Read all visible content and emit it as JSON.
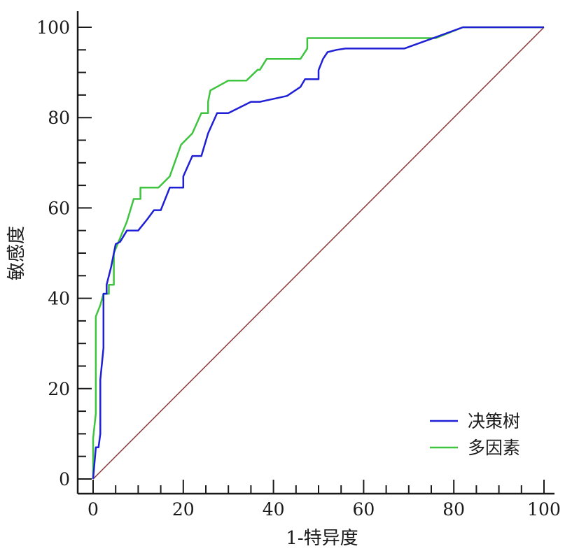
{
  "chart_data": {
    "type": "line",
    "xlabel": "1-特异度",
    "ylabel": "敏感度",
    "xlim": [
      0,
      100
    ],
    "ylim": [
      0,
      100
    ],
    "x_ticks": [
      0,
      20,
      40,
      60,
      80,
      100
    ],
    "y_ticks": [
      0,
      20,
      40,
      60,
      80,
      100
    ],
    "grid": false,
    "legend_position": "bottom-right",
    "reference_line": {
      "x": [
        0,
        100
      ],
      "y": [
        0,
        100
      ],
      "color": "#8b3a3a"
    },
    "series": [
      {
        "name": "决策树",
        "color": "#1f1fd6",
        "points": [
          [
            0,
            0
          ],
          [
            0.6,
            7
          ],
          [
            1.2,
            7
          ],
          [
            1.6,
            10
          ],
          [
            1.6,
            22
          ],
          [
            2.3,
            29
          ],
          [
            2.3,
            41
          ],
          [
            3,
            41
          ],
          [
            3,
            43
          ],
          [
            4,
            47
          ],
          [
            5,
            52
          ],
          [
            6,
            52.5
          ],
          [
            7.5,
            55
          ],
          [
            10,
            55
          ],
          [
            12,
            57.5
          ],
          [
            13.5,
            59.5
          ],
          [
            15,
            59.5
          ],
          [
            17,
            64.5
          ],
          [
            20,
            64.5
          ],
          [
            20,
            67
          ],
          [
            22,
            71.5
          ],
          [
            24,
            71.5
          ],
          [
            25.5,
            76.5
          ],
          [
            27.5,
            81
          ],
          [
            30,
            81
          ],
          [
            35,
            83.5
          ],
          [
            37,
            83.5
          ],
          [
            43,
            84.8
          ],
          [
            46,
            86.8
          ],
          [
            47,
            88.5
          ],
          [
            50,
            88.5
          ],
          [
            50,
            90.5
          ],
          [
            51,
            93
          ],
          [
            52,
            94.5
          ],
          [
            54,
            95
          ],
          [
            56,
            95.3
          ],
          [
            69,
            95.3
          ],
          [
            76,
            97.8
          ],
          [
            82,
            100
          ],
          [
            100,
            100
          ]
        ]
      },
      {
        "name": "多因素",
        "color": "#3ec43e",
        "points": [
          [
            0,
            0
          ],
          [
            0,
            9
          ],
          [
            0.6,
            14.5
          ],
          [
            0.6,
            36
          ],
          [
            1.6,
            38.5
          ],
          [
            2.3,
            41
          ],
          [
            3.5,
            41
          ],
          [
            3.5,
            43
          ],
          [
            4.6,
            43
          ],
          [
            4.6,
            50
          ],
          [
            7.5,
            57
          ],
          [
            9,
            62
          ],
          [
            10.5,
            62
          ],
          [
            10.5,
            64.5
          ],
          [
            14.5,
            64.5
          ],
          [
            17,
            67
          ],
          [
            19.5,
            74
          ],
          [
            22,
            76.5
          ],
          [
            24,
            81
          ],
          [
            25.5,
            81
          ],
          [
            25.5,
            83.5
          ],
          [
            26,
            86
          ],
          [
            30,
            88.2
          ],
          [
            34,
            88.2
          ],
          [
            36.5,
            90.6
          ],
          [
            37,
            90.6
          ],
          [
            38.5,
            93
          ],
          [
            46,
            93
          ],
          [
            47.5,
            95.3
          ],
          [
            47.5,
            97.6
          ],
          [
            76,
            97.6
          ],
          [
            82,
            100
          ],
          [
            100,
            100
          ]
        ]
      }
    ]
  }
}
